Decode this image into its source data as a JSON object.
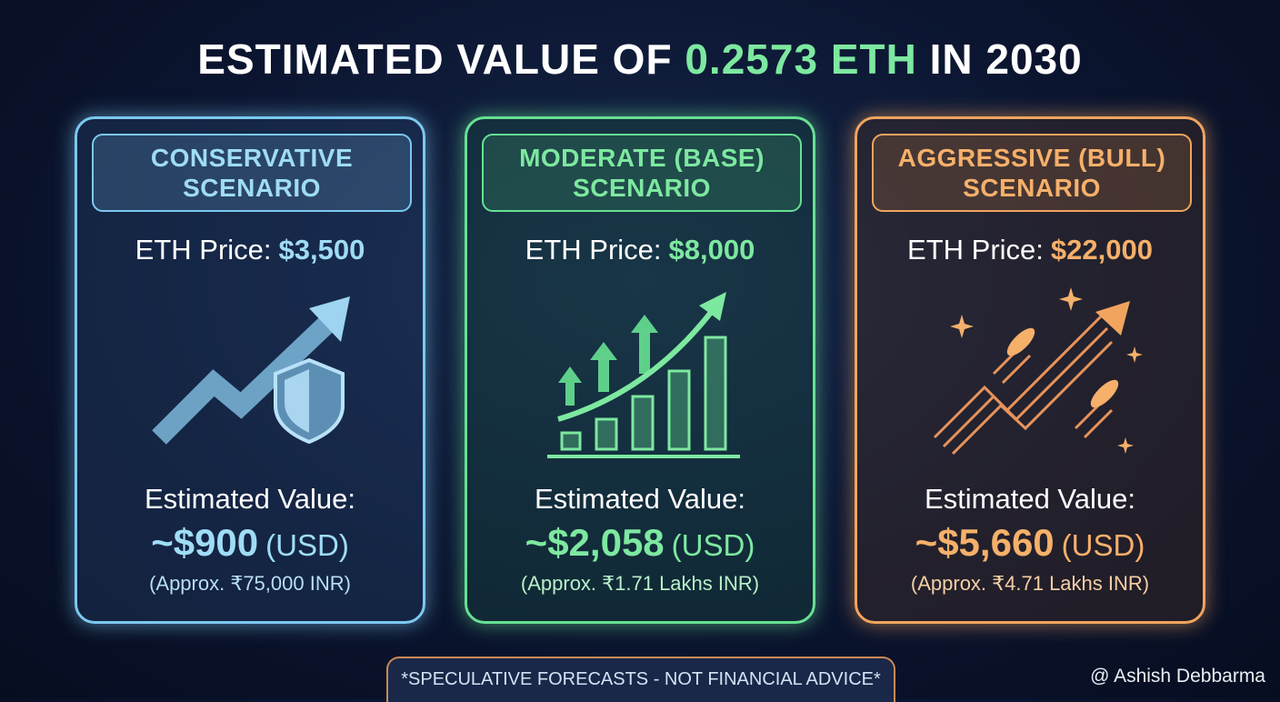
{
  "title": {
    "prefix": "ESTIMATED VALUE OF",
    "highlight": "0.2573 ETH",
    "suffix": "IN 2030"
  },
  "cards": [
    {
      "heading": [
        "CONSERVATIVE",
        "SCENARIO"
      ],
      "price_label": "ETH Price:",
      "price": "$3,500",
      "value_label": "Estimated Value:",
      "value": "~$900",
      "unit": "(USD)",
      "inr": "(Approx. ₹75,000 INR)"
    },
    {
      "heading": [
        "MODERATE (BASE)",
        "SCENARIO"
      ],
      "price_label": "ETH Price:",
      "price": "$8,000",
      "value_label": "Estimated Value:",
      "value": "~$2,058",
      "unit": "(USD)",
      "inr": "(Approx. ₹1.71 Lakhs INR)"
    },
    {
      "heading": [
        "AGGRESSIVE (BULL)",
        "SCENARIO"
      ],
      "price_label": "ETH Price:",
      "price": "$22,000",
      "value_label": "Estimated Value:",
      "value": "~$5,660",
      "unit": "(USD)",
      "inr": "(Approx. ₹4.71 Lakhs INR)"
    }
  ],
  "footer": {
    "disclaimer": "*SPECULATIVE FORECASTS - NOT FINANCIAL ADVICE*",
    "watermark": "@ Ashish Debbarma"
  }
}
